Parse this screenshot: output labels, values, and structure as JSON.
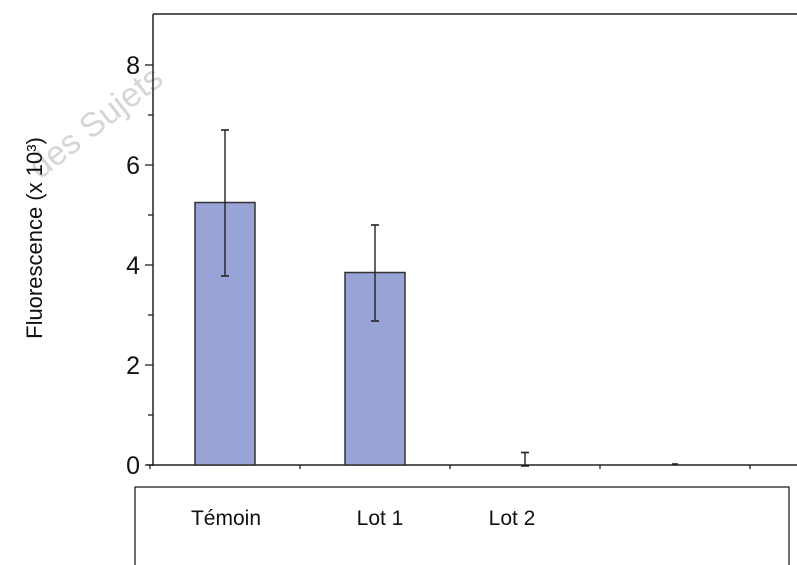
{
  "chart_data": {
    "type": "bar",
    "title": "",
    "xlabel": "",
    "ylabel": "Fluorescence (x 10³)",
    "ylim": [
      0,
      9
    ],
    "yticks": [
      "0",
      "2",
      "4",
      "6",
      "8"
    ],
    "categories": [
      "Témoin",
      "Lot 1",
      "Lot 2",
      ""
    ],
    "values": [
      5.25,
      3.85,
      0,
      0
    ],
    "error": [
      1.45,
      0.95,
      0.25,
      0
    ],
    "bar_color": "#98a3d6",
    "bar_edge_color": "#333333",
    "grid": false,
    "legend": "none"
  },
  "watermark": "des Sujets"
}
